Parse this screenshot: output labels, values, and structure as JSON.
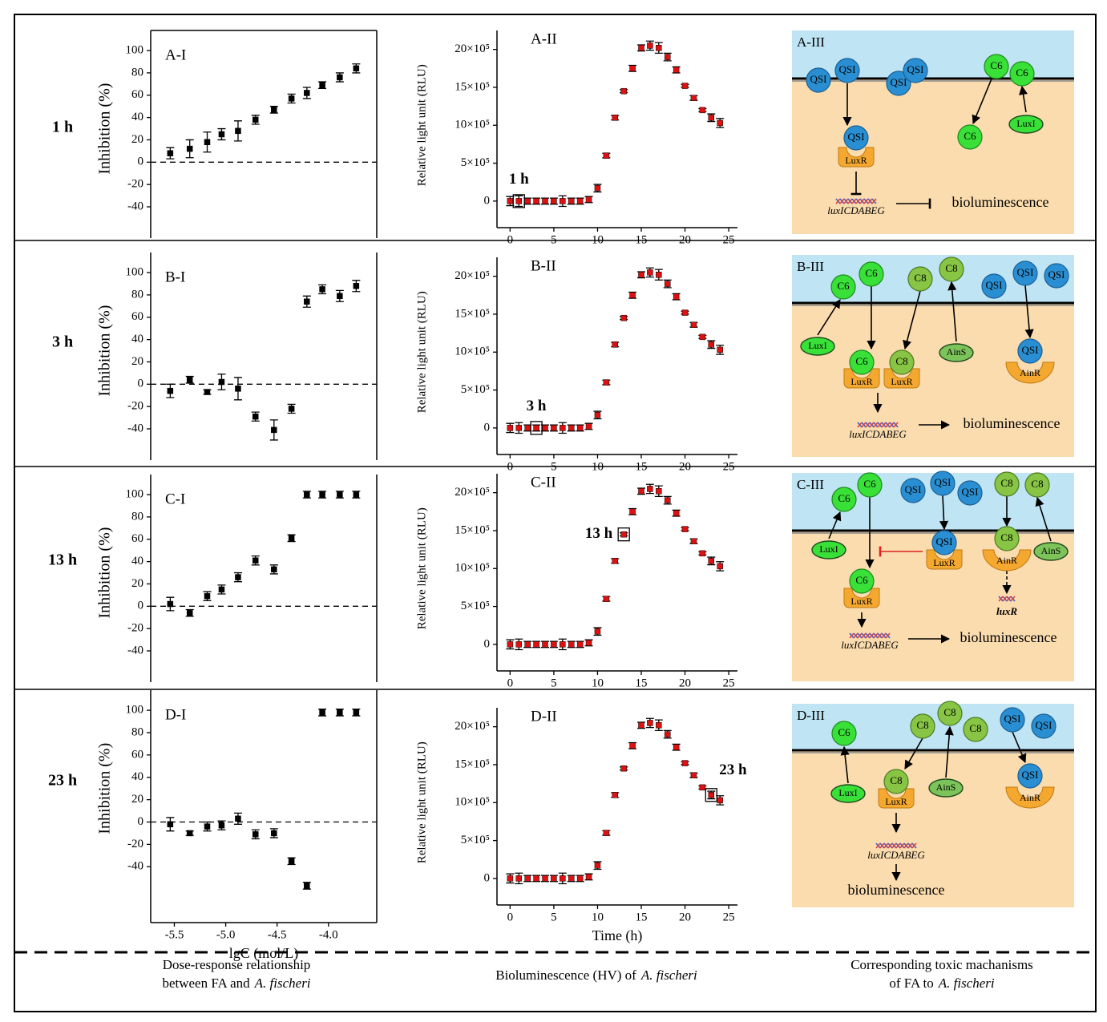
{
  "row_labels": [
    "1 h",
    "3 h",
    "13 h",
    "23 h"
  ],
  "chart_data": [
    {
      "type": "scatter",
      "title": "A-I",
      "color": "#000000",
      "zero_line": true,
      "ylabel": "Inhibition (%)",
      "xlim": [
        -5.73,
        -3.53
      ],
      "ylim": [
        -68,
        118
      ],
      "yticks": [
        -40,
        -20,
        0,
        20,
        40,
        60,
        80,
        100
      ],
      "x": [
        -5.54,
        -5.35,
        -5.18,
        -5.04,
        -4.88,
        -4.71,
        -4.53,
        -4.36,
        -4.21,
        -4.06,
        -3.89,
        -3.73
      ],
      "values": [
        8,
        12,
        18,
        25,
        28,
        38,
        47,
        57,
        62,
        69,
        76,
        84
      ],
      "errors": [
        5,
        8,
        9,
        5,
        9,
        4,
        3,
        4,
        5,
        3,
        4,
        4
      ]
    },
    {
      "type": "scatter",
      "title": "A-II",
      "color": "#dd1111",
      "ylabel": "Relative light unit (RLU)",
      "annotation": "1 h",
      "highlight_x": 1,
      "xlim": [
        -1.5,
        26
      ],
      "ylim": [
        -350000,
        2250000
      ],
      "xticks": [
        0,
        5,
        10,
        15,
        20,
        25
      ],
      "yticks": [
        0,
        {
          "value": 500000,
          "label": "5×10⁵"
        },
        {
          "value": 1000000,
          "label": "10×10⁵"
        },
        {
          "value": 1500000,
          "label": "15×10⁵"
        },
        {
          "value": 2000000,
          "label": "20×10⁵"
        }
      ],
      "x": [
        0,
        1,
        2,
        3,
        4,
        5,
        6,
        7,
        8,
        9,
        10,
        11,
        12,
        13,
        14,
        15,
        16,
        17,
        18,
        19,
        20,
        21,
        22,
        23,
        24
      ],
      "values": [
        0,
        0,
        0,
        0,
        0,
        0,
        0,
        0,
        0,
        20000,
        170000,
        600000,
        1100000,
        1450000,
        1750000,
        2020000,
        2050000,
        2020000,
        1900000,
        1730000,
        1520000,
        1360000,
        1200000,
        1100000,
        1030000
      ],
      "errors": [
        60000,
        70000,
        40000,
        40000,
        40000,
        40000,
        70000,
        40000,
        40000,
        40000,
        50000,
        30000,
        30000,
        20000,
        40000,
        40000,
        60000,
        70000,
        50000,
        40000,
        20000,
        30000,
        20000,
        50000,
        60000
      ]
    },
    {
      "type": "scatter",
      "title": "B-I",
      "color": "#000000",
      "zero_line": true,
      "ylabel": "Inhibition (%)",
      "xlim": [
        -5.73,
        -3.53
      ],
      "ylim": [
        -68,
        118
      ],
      "yticks": [
        -40,
        -20,
        0,
        20,
        40,
        60,
        80,
        100
      ],
      "x": [
        -5.54,
        -5.35,
        -5.18,
        -5.04,
        -4.88,
        -4.71,
        -4.53,
        -4.36,
        -4.21,
        -4.06,
        -3.89,
        -3.73
      ],
      "values": [
        -6,
        4,
        -7,
        2,
        -4,
        -29,
        -41,
        -22,
        74,
        85,
        79,
        88
      ],
      "errors": [
        6,
        3,
        2,
        7,
        10,
        4,
        9,
        4,
        5,
        4,
        5,
        5
      ]
    },
    {
      "type": "scatter",
      "title": "B-II",
      "color": "#dd1111",
      "ylabel": "Relative light unit (RLU)",
      "annotation": "3 h",
      "highlight_x": 3,
      "xlim": [
        -1.5,
        26
      ],
      "ylim": [
        -350000,
        2250000
      ],
      "xticks": [
        0,
        5,
        10,
        15,
        20,
        25
      ],
      "yticks": [
        0,
        {
          "value": 500000,
          "label": "5×10⁵"
        },
        {
          "value": 1000000,
          "label": "10×10⁵"
        },
        {
          "value": 1500000,
          "label": "15×10⁵"
        },
        {
          "value": 2000000,
          "label": "20×10⁵"
        }
      ],
      "x": [
        0,
        1,
        2,
        3,
        4,
        5,
        6,
        7,
        8,
        9,
        10,
        11,
        12,
        13,
        14,
        15,
        16,
        17,
        18,
        19,
        20,
        21,
        22,
        23,
        24
      ],
      "values": [
        0,
        0,
        0,
        0,
        0,
        0,
        0,
        0,
        0,
        20000,
        170000,
        600000,
        1100000,
        1450000,
        1750000,
        2020000,
        2050000,
        2020000,
        1900000,
        1730000,
        1520000,
        1360000,
        1200000,
        1100000,
        1030000
      ],
      "errors": [
        60000,
        70000,
        40000,
        40000,
        40000,
        40000,
        70000,
        40000,
        40000,
        40000,
        50000,
        30000,
        30000,
        20000,
        40000,
        40000,
        60000,
        70000,
        50000,
        40000,
        20000,
        30000,
        20000,
        50000,
        60000
      ]
    },
    {
      "type": "scatter",
      "title": "C-I",
      "color": "#000000",
      "zero_line": true,
      "ylabel": "Inhibition (%)",
      "xlim": [
        -5.73,
        -3.53
      ],
      "ylim": [
        -68,
        118
      ],
      "yticks": [
        -40,
        -20,
        0,
        20,
        40,
        60,
        80,
        100
      ],
      "x": [
        -5.54,
        -5.35,
        -5.18,
        -5.04,
        -4.88,
        -4.71,
        -4.53,
        -4.36,
        -4.21,
        -4.06,
        -3.89,
        -3.73
      ],
      "values": [
        2,
        -6,
        9,
        15,
        26,
        41,
        33,
        61,
        100,
        100,
        100,
        100
      ],
      "errors": [
        6,
        3,
        4,
        4,
        4,
        4,
        4,
        3,
        3,
        3,
        3,
        3
      ]
    },
    {
      "type": "scatter",
      "title": "C-II",
      "color": "#dd1111",
      "ylabel": "Relative light unit (RLU)",
      "annotation": "13 h",
      "highlight_x": 13,
      "xlim": [
        -1.5,
        26
      ],
      "ylim": [
        -350000,
        2250000
      ],
      "xticks": [
        0,
        5,
        10,
        15,
        20,
        25
      ],
      "yticks": [
        0,
        {
          "value": 500000,
          "label": "5×10⁵"
        },
        {
          "value": 1000000,
          "label": "10×10⁵"
        },
        {
          "value": 1500000,
          "label": "15×10⁵"
        },
        {
          "value": 2000000,
          "label": "20×10⁵"
        }
      ],
      "x": [
        0,
        1,
        2,
        3,
        4,
        5,
        6,
        7,
        8,
        9,
        10,
        11,
        12,
        13,
        14,
        15,
        16,
        17,
        18,
        19,
        20,
        21,
        22,
        23,
        24
      ],
      "values": [
        0,
        0,
        0,
        0,
        0,
        0,
        0,
        0,
        0,
        20000,
        170000,
        600000,
        1100000,
        1450000,
        1750000,
        2020000,
        2050000,
        2020000,
        1900000,
        1730000,
        1520000,
        1360000,
        1200000,
        1100000,
        1030000
      ],
      "errors": [
        60000,
        70000,
        40000,
        40000,
        40000,
        40000,
        70000,
        40000,
        40000,
        40000,
        50000,
        30000,
        30000,
        20000,
        40000,
        40000,
        60000,
        70000,
        50000,
        40000,
        20000,
        30000,
        20000,
        50000,
        60000
      ]
    },
    {
      "type": "scatter",
      "title": "D-I",
      "color": "#000000",
      "zero_line": true,
      "ylabel": "Inhibition (%)",
      "xlabel": "lgC (mol/L)",
      "xlim": [
        -5.73,
        -3.53
      ],
      "ylim": [
        -90,
        118
      ],
      "yticks": [
        -40,
        -20,
        0,
        20,
        40,
        60,
        80,
        100
      ],
      "xticks": [
        -5.5,
        {
          "value": -5,
          "label": "-5.0"
        },
        -4.5,
        {
          "value": -4,
          "label": "-4.0"
        }
      ],
      "x": [
        -5.54,
        -5.35,
        -5.18,
        -5.04,
        -4.88,
        -4.71,
        -4.53,
        -4.36,
        -4.21,
        -4.06,
        -3.89,
        -3.73
      ],
      "values": [
        -2,
        -10,
        -4,
        -3,
        3,
        -11,
        -10,
        -35,
        -57,
        98,
        98,
        98
      ],
      "errors": [
        6,
        2,
        4,
        4,
        5,
        4,
        4,
        3,
        3,
        3,
        3,
        3
      ]
    },
    {
      "type": "scatter",
      "title": "D-II",
      "color": "#dd1111",
      "ylabel": "Relative light unit (RLU)",
      "xlabel": "Time (h)",
      "annotation": "23 h",
      "highlight_x": 23,
      "xlim": [
        -1.5,
        26
      ],
      "ylim": [
        -350000,
        2250000
      ],
      "xticks": [
        0,
        5,
        10,
        15,
        20,
        25
      ],
      "yticks": [
        0,
        {
          "value": 500000,
          "label": "5×10⁵"
        },
        {
          "value": 1000000,
          "label": "10×10⁵"
        },
        {
          "value": 1500000,
          "label": "15×10⁵"
        },
        {
          "value": 2000000,
          "label": "20×10⁵"
        }
      ],
      "x": [
        0,
        1,
        2,
        3,
        4,
        5,
        6,
        7,
        8,
        9,
        10,
        11,
        12,
        13,
        14,
        15,
        16,
        17,
        18,
        19,
        20,
        21,
        22,
        23,
        24
      ],
      "values": [
        0,
        0,
        0,
        0,
        0,
        0,
        0,
        0,
        0,
        20000,
        170000,
        600000,
        1100000,
        1450000,
        1750000,
        2020000,
        2050000,
        2020000,
        1900000,
        1730000,
        1520000,
        1360000,
        1200000,
        1100000,
        1030000
      ],
      "errors": [
        60000,
        70000,
        40000,
        40000,
        40000,
        40000,
        70000,
        40000,
        40000,
        40000,
        50000,
        30000,
        30000,
        20000,
        40000,
        40000,
        60000,
        70000,
        50000,
        40000,
        20000,
        30000,
        20000,
        50000,
        60000
      ]
    }
  ],
  "diagrams": [
    {
      "title": "A-III",
      "items": [
        "QSI",
        "QSI",
        "QSI",
        "QSI",
        "C6",
        "C6",
        "C6",
        "LuxI",
        "QSI",
        "LuxR",
        "luxICDABEG",
        "bioluminescence"
      ]
    },
    {
      "title": "B-III",
      "items": [
        "C6",
        "C6",
        "C8",
        "C8",
        "QSI",
        "QSI",
        "QSI",
        "LuxI",
        "AinS",
        "C6",
        "LuxR",
        "C8",
        "LuxR",
        "QSI",
        "AinR",
        "luxICDABEG",
        "bioluminescence"
      ]
    },
    {
      "title": "C-III",
      "items": [
        "C6",
        "C6",
        "QSI",
        "QSI",
        "QSI",
        "C8",
        "C8",
        "LuxI",
        "QSI",
        "LuxR",
        "C8",
        "AinR",
        "luxR",
        "AinS",
        "C6",
        "LuxR",
        "luxICDABEG",
        "bioluminescence"
      ]
    },
    {
      "title": "D-III",
      "items": [
        "C6",
        "C8",
        "C8",
        "C8",
        "QSI",
        "QSI",
        "LuxI",
        "C8",
        "LuxR",
        "AinS",
        "QSI",
        "AinR",
        "luxICDABEG",
        "bioluminescence"
      ]
    }
  ],
  "captions": [
    {
      "lines": [
        "Dose-response relationship",
        "between FA and"
      ],
      "species": "A. fischeri"
    },
    {
      "lines": [
        "Bioluminescence (HV) of"
      ],
      "species": "A. fischeri"
    },
    {
      "lines": [
        "Corresponding toxic machanisms",
        "of FA to"
      ],
      "species": "A. fischeri"
    }
  ]
}
